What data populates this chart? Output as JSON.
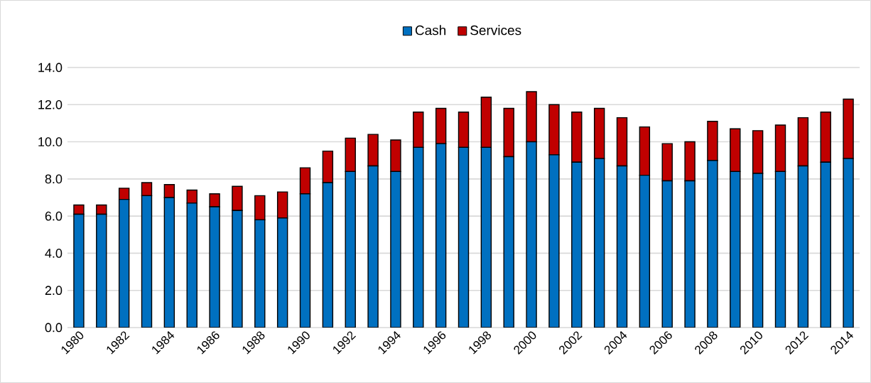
{
  "chart_data": {
    "type": "bar",
    "stacked": true,
    "categories": [
      "1980",
      null,
      "1982",
      null,
      "1984",
      null,
      "1986",
      null,
      "1988",
      null,
      "1990",
      null,
      "1992",
      null,
      "1994",
      null,
      "1996",
      null,
      "1998",
      null,
      "2000",
      null,
      "2002",
      null,
      "2004",
      null,
      "2006",
      null,
      "2008",
      null,
      "2010",
      null,
      "2012",
      null,
      "2014"
    ],
    "series": [
      {
        "name": "Cash",
        "color": "#0070c0",
        "values": [
          6.1,
          6.1,
          6.9,
          7.1,
          7.0,
          6.7,
          6.5,
          6.3,
          5.8,
          5.9,
          7.2,
          7.8,
          8.4,
          8.7,
          8.4,
          9.7,
          9.9,
          9.7,
          9.7,
          9.2,
          10.0,
          9.3,
          8.9,
          9.1,
          8.7,
          8.2,
          7.9,
          7.9,
          9.0,
          8.4,
          8.3,
          8.4,
          8.7,
          8.9,
          9.1
        ]
      },
      {
        "name": "Services",
        "color": "#c00000",
        "values": [
          0.5,
          0.5,
          0.6,
          0.7,
          0.7,
          0.7,
          0.7,
          1.3,
          1.3,
          1.4,
          1.4,
          1.7,
          1.8,
          1.7,
          1.7,
          1.9,
          1.9,
          1.9,
          2.7,
          2.6,
          2.7,
          2.7,
          2.7,
          2.7,
          2.6,
          2.6,
          2.0,
          2.1,
          2.1,
          2.3,
          2.3,
          2.5,
          2.6,
          2.7,
          3.2
        ]
      }
    ],
    "ylim": [
      0,
      14
    ],
    "yticks": [
      {
        "value": 0,
        "label": "0.0"
      },
      {
        "value": 2,
        "label": "2.0"
      },
      {
        "value": 4,
        "label": "4.0"
      },
      {
        "value": 6,
        "label": "6.0"
      },
      {
        "value": 8,
        "label": "8.0"
      },
      {
        "value": 10,
        "label": "10.0"
      },
      {
        "value": 12,
        "label": "12.0"
      },
      {
        "value": 14,
        "label": "14.0"
      }
    ],
    "grid": "y",
    "legend": "top"
  }
}
